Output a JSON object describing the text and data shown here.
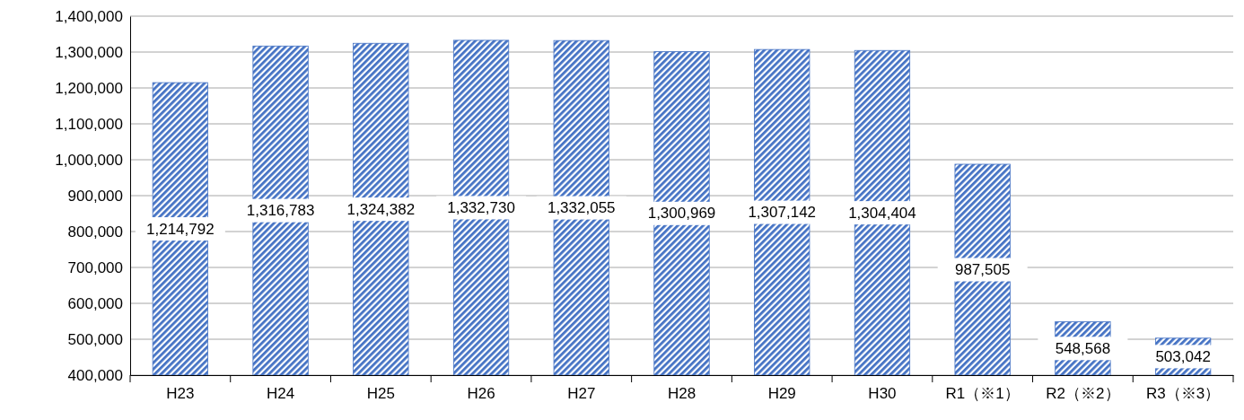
{
  "chart_data": {
    "type": "bar",
    "categories": [
      "H23",
      "H24",
      "H25",
      "H26",
      "H27",
      "H28",
      "H29",
      "H30",
      "R1（※1）",
      "R2（※2）",
      "R3（※3）"
    ],
    "values": [
      1214792,
      1316783,
      1324382,
      1332730,
      1332055,
      1300969,
      1307142,
      1304404,
      987505,
      548568,
      503042
    ],
    "color": "#4472c4",
    "ylim": [
      400000,
      1400000
    ],
    "yticks": [
      {
        "value": 400000,
        "label": "400,000"
      },
      {
        "value": 500000,
        "label": "500,000"
      },
      {
        "value": 600000,
        "label": "600,000"
      },
      {
        "value": 700000,
        "label": "700,000"
      },
      {
        "value": 800000,
        "label": "800,000"
      },
      {
        "value": 900000,
        "label": "900,000"
      },
      {
        "value": 1000000,
        "label": "1,000,000"
      },
      {
        "value": 1100000,
        "label": "1,100,000"
      },
      {
        "value": 1200000,
        "label": "1,200,000"
      },
      {
        "value": 1300000,
        "label": "1,300,000"
      },
      {
        "value": 1400000,
        "label": "1,400,000"
      }
    ],
    "grid": "y",
    "value_labels": [
      "1,214,792",
      "1,316,783",
      "1,324,382",
      "1,332,730",
      "1,332,055",
      "1,300,969",
      "1,307,142",
      "1,304,404",
      "987,505",
      "548,568",
      "503,042"
    ]
  }
}
